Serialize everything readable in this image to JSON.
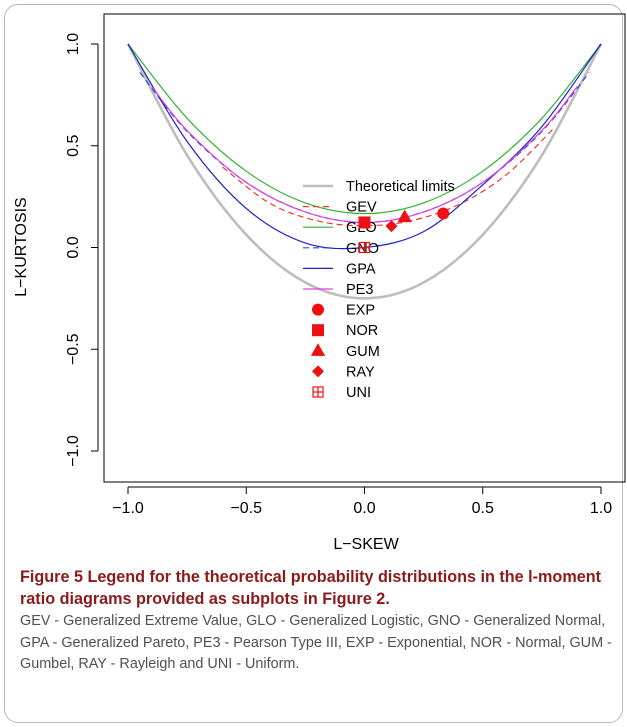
{
  "chart_data": {
    "type": "line",
    "xlabel": "L−SKEW",
    "ylabel": "L−KURTOSIS",
    "xlim": [
      -1.0,
      1.0
    ],
    "ylim": [
      -1.0,
      1.0
    ],
    "xticks": [
      "−1.0",
      "−0.5",
      "0.0",
      "0.5",
      "1.0"
    ],
    "yticks": [
      "−1.0",
      "−0.5",
      "0.0",
      "0.5",
      "1.0"
    ],
    "grid": false,
    "legend_position": "center",
    "series": [
      {
        "name": "Theoretical limits",
        "kind": "curve",
        "color": "#bdbdbd",
        "dash": "solid",
        "x": [
          -1.0,
          -0.75,
          -0.5,
          -0.25,
          0.0,
          0.25,
          0.5,
          0.75,
          1.0
        ],
        "y": [
          1.0,
          0.453,
          0.063,
          -0.172,
          -0.25,
          -0.172,
          0.063,
          0.453,
          1.0
        ]
      },
      {
        "name": "GEV",
        "kind": "curve",
        "color": "#e8392a",
        "dash": "dashed",
        "x": [
          -0.6,
          -0.4,
          -0.2,
          0.0,
          0.2,
          0.4,
          0.6,
          0.8
        ],
        "y": [
          0.395,
          0.217,
          0.131,
          0.107,
          0.132,
          0.212,
          0.358,
          0.585
        ]
      },
      {
        "name": "GLO",
        "kind": "curve",
        "color": "#33b233",
        "dash": "solid",
        "x": [
          -1.0,
          -0.75,
          -0.5,
          -0.25,
          0.0,
          0.25,
          0.5,
          0.75,
          1.0
        ],
        "y": [
          1.0,
          0.635,
          0.375,
          0.219,
          0.167,
          0.219,
          0.375,
          0.635,
          1.0
        ]
      },
      {
        "name": "GNO",
        "kind": "curve",
        "color": "#2a46d6",
        "dash": "dashed",
        "x": [
          -0.95,
          -0.75,
          -0.5,
          -0.25,
          0.0,
          0.25,
          0.5,
          0.75,
          0.95
        ],
        "y": [
          0.86,
          0.57,
          0.32,
          0.175,
          0.123,
          0.175,
          0.32,
          0.57,
          0.86
        ]
      },
      {
        "name": "GPA",
        "kind": "curve",
        "color": "#1a22c8",
        "dash": "solid",
        "x": [
          -1.0,
          -0.75,
          -0.5,
          -0.25,
          0.0,
          0.25,
          0.5,
          0.75,
          1.0
        ],
        "y": [
          1.0,
          0.521,
          0.192,
          0.022,
          0.0,
          0.078,
          0.308,
          0.594,
          1.0
        ]
      },
      {
        "name": "PE3",
        "kind": "curve",
        "color": "#e040e0",
        "dash": "solid",
        "x": [
          -0.9,
          -0.75,
          -0.5,
          -0.25,
          0.0,
          0.25,
          0.5,
          0.75,
          0.9
        ],
        "y": [
          0.792,
          0.575,
          0.32,
          0.174,
          0.123,
          0.174,
          0.32,
          0.575,
          0.792
        ]
      },
      {
        "name": "EXP",
        "kind": "point",
        "marker": "circle",
        "color": "#ee1111",
        "x": [
          0.333
        ],
        "y": [
          0.167
        ]
      },
      {
        "name": "NOR",
        "kind": "point",
        "marker": "square",
        "color": "#ee1111",
        "x": [
          0.0
        ],
        "y": [
          0.123
        ]
      },
      {
        "name": "GUM",
        "kind": "point",
        "marker": "triangle",
        "color": "#ee1111",
        "x": [
          0.17
        ],
        "y": [
          0.15
        ]
      },
      {
        "name": "RAY",
        "kind": "point",
        "marker": "diamond",
        "color": "#ee1111",
        "x": [
          0.114
        ],
        "y": [
          0.105
        ]
      },
      {
        "name": "UNI",
        "kind": "point",
        "marker": "boxplus",
        "color": "#ee1111",
        "x": [
          0.0
        ],
        "y": [
          0.0
        ]
      }
    ]
  },
  "caption": {
    "title": "Figure 5 Legend for the theoretical probability distributions in the l-moment ratio diagrams provided as subplots in Figure 2.",
    "text": "GEV - Generalized Extreme Value, GLO - Generalized Logistic, GNO - Generalized Normal, GPA - Generalized Pareto, PE3 - Pearson Type III, EXP - Exponential, NOR - Normal, GUM - Gumbel, RAY - Rayleigh and UNI - Uniform."
  }
}
